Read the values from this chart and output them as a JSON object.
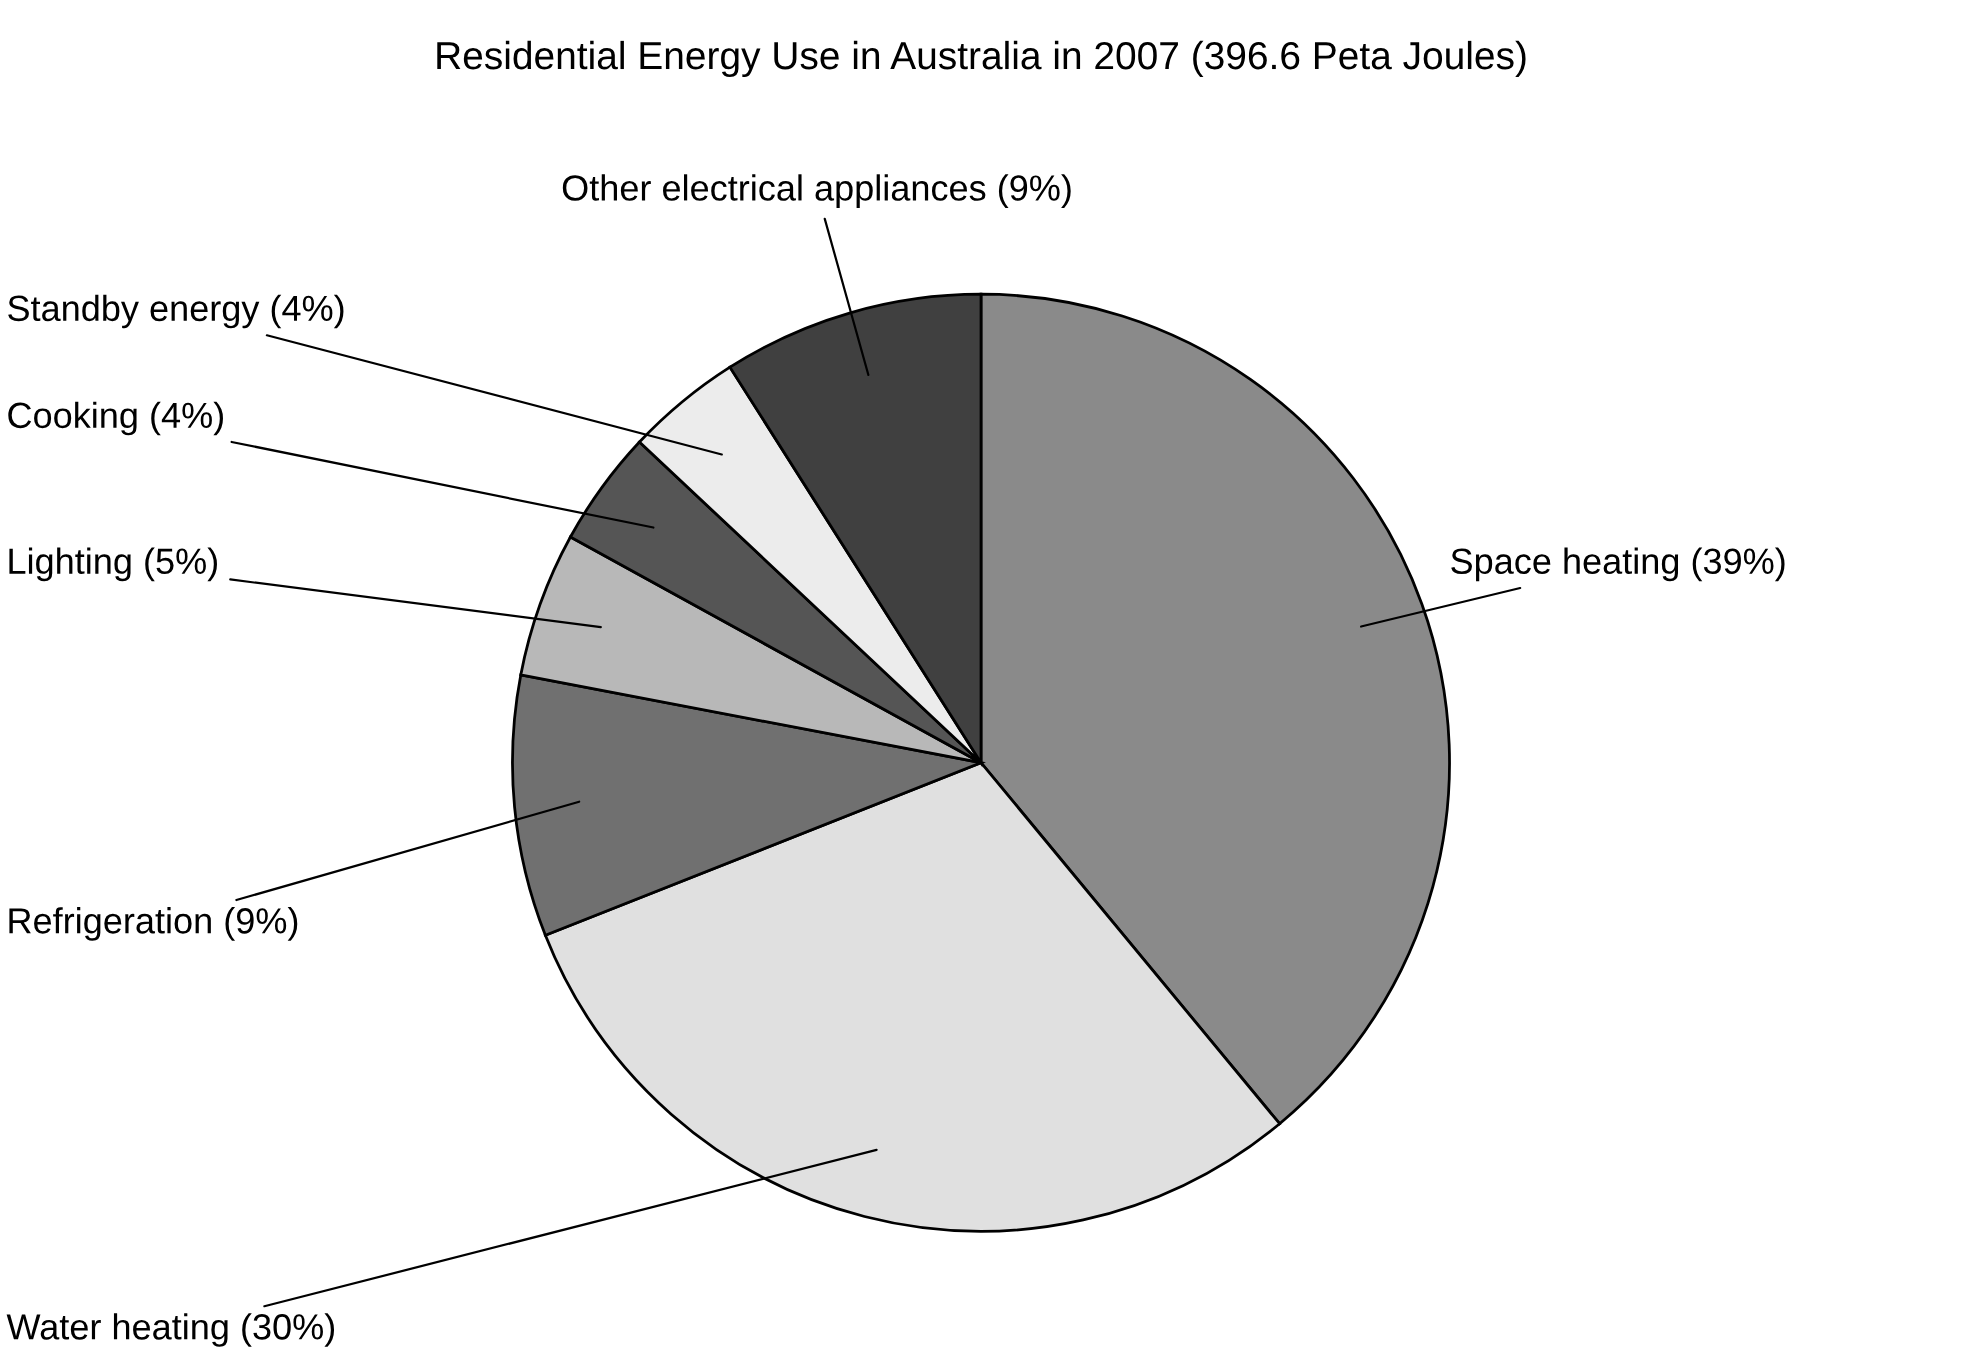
{
  "chart_data": {
    "type": "pie",
    "title": "Residential Energy Use in Australia in 2007 (396.6 Peta Joules)",
    "categories": [
      "Space heating (39%)",
      "Water heating (30%)",
      "Refrigeration (9%)",
      "Lighting (5%)",
      "Cooking (4%)",
      "Standby energy (4%)",
      "Other electrical appliances (9%)"
    ],
    "values": [
      39,
      30,
      9,
      5,
      4,
      4,
      9
    ],
    "colors": [
      "#8a8a8a",
      "#e0e0e0",
      "#707070",
      "#b8b8b8",
      "#555555",
      "#ececec",
      "#404040"
    ],
    "legend": false
  }
}
